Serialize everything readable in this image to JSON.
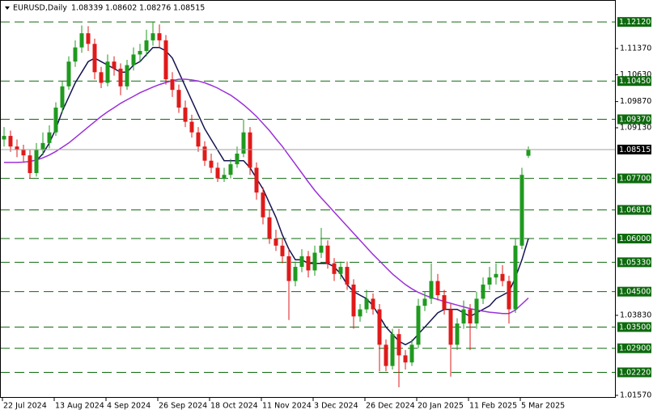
{
  "chart_data": {
    "type": "candlestick",
    "title": "EURUSD,Daily",
    "bull_color": "#1f9a1f",
    "bear_color": "#e01a1a",
    "level_color": "#0e6a0e",
    "candles": [
      [
        1.088,
        1.0915,
        1.086,
        1.089
      ],
      [
        1.089,
        1.0905,
        1.0845,
        1.086
      ],
      [
        1.086,
        1.088,
        1.083,
        1.085
      ],
      [
        1.085,
        1.0865,
        1.0815,
        1.0835
      ],
      [
        1.0835,
        1.085,
        1.077,
        1.0785
      ],
      [
        1.0785,
        1.087,
        1.0775,
        1.085
      ],
      [
        1.085,
        1.09,
        1.0835,
        1.087
      ],
      [
        1.087,
        1.092,
        1.0855,
        1.09
      ],
      [
        1.09,
        1.0985,
        1.089,
        1.097
      ],
      [
        1.097,
        1.1045,
        1.0955,
        1.103
      ],
      [
        1.103,
        1.1115,
        1.102,
        1.11
      ],
      [
        1.11,
        1.116,
        1.1085,
        1.114
      ],
      [
        1.114,
        1.1202,
        1.1125,
        1.118
      ],
      [
        1.118,
        1.12,
        1.113,
        1.115
      ],
      [
        1.115,
        1.1165,
        1.105,
        1.107
      ],
      [
        1.107,
        1.1085,
        1.1025,
        1.104
      ],
      [
        1.104,
        1.112,
        1.103,
        1.11
      ],
      [
        1.11,
        1.1115,
        1.106,
        1.108
      ],
      [
        1.108,
        1.1095,
        1.1005,
        1.103
      ],
      [
        1.103,
        1.1105,
        1.102,
        1.109
      ],
      [
        1.109,
        1.114,
        1.1075,
        1.112
      ],
      [
        1.112,
        1.115,
        1.11,
        1.113
      ],
      [
        1.113,
        1.119,
        1.1115,
        1.116
      ],
      [
        1.116,
        1.1212,
        1.1145,
        1.118
      ],
      [
        1.118,
        1.1205,
        1.114,
        1.116
      ],
      [
        1.116,
        1.1175,
        1.1035,
        1.105
      ],
      [
        1.105,
        1.107,
        1.1,
        1.102
      ],
      [
        1.102,
        1.1035,
        1.0955,
        1.097
      ],
      [
        1.097,
        1.099,
        1.0915,
        1.093
      ],
      [
        1.093,
        1.095,
        1.0885,
        1.09
      ],
      [
        1.09,
        1.0915,
        1.0845,
        1.086
      ],
      [
        1.086,
        1.0875,
        1.0805,
        1.082
      ],
      [
        1.082,
        1.084,
        1.0785,
        1.08
      ],
      [
        1.08,
        1.0815,
        1.076,
        1.077
      ],
      [
        1.077,
        1.08,
        1.076,
        1.078
      ],
      [
        1.078,
        1.0825,
        1.077,
        1.081
      ],
      [
        1.081,
        1.086,
        1.08,
        1.084
      ],
      [
        1.084,
        1.0937,
        1.083,
        1.09
      ],
      [
        1.09,
        1.0915,
        1.078,
        1.08
      ],
      [
        1.08,
        1.0815,
        1.071,
        1.073
      ],
      [
        1.073,
        1.0745,
        1.064,
        1.066
      ],
      [
        1.066,
        1.068,
        1.0585,
        1.06
      ],
      [
        1.06,
        1.0625,
        1.0565,
        1.058
      ],
      [
        1.058,
        1.06,
        1.053,
        1.055
      ],
      [
        1.055,
        1.057,
        1.037,
        1.048
      ],
      [
        1.048,
        1.0535,
        1.0465,
        1.052
      ],
      [
        1.052,
        1.057,
        1.0505,
        1.055
      ],
      [
        1.055,
        1.0565,
        1.049,
        1.051
      ],
      [
        1.051,
        1.058,
        1.0495,
        1.056
      ],
      [
        1.056,
        1.063,
        1.0545,
        1.058
      ],
      [
        1.058,
        1.0595,
        1.0515,
        1.053
      ],
      [
        1.053,
        1.0545,
        1.048,
        1.05
      ],
      [
        1.05,
        1.0535,
        1.0485,
        1.052
      ],
      [
        1.052,
        1.0535,
        1.0455,
        1.047
      ],
      [
        1.047,
        1.0485,
        1.0345,
        1.038
      ],
      [
        1.038,
        1.0415,
        1.0365,
        1.04
      ],
      [
        1.04,
        1.0455,
        1.039,
        1.043
      ],
      [
        1.043,
        1.0445,
        1.0385,
        1.04
      ],
      [
        1.04,
        1.0415,
        1.0225,
        1.03
      ],
      [
        1.03,
        1.0315,
        1.0225,
        1.024
      ],
      [
        1.024,
        1.0345,
        1.023,
        1.033
      ],
      [
        1.033,
        1.0345,
        1.018,
        1.027
      ],
      [
        1.027,
        1.0285,
        1.023,
        1.025
      ],
      [
        1.025,
        1.0315,
        1.024,
        1.03
      ],
      [
        1.03,
        1.043,
        1.029,
        1.041
      ],
      [
        1.041,
        1.045,
        1.0395,
        1.043
      ],
      [
        1.043,
        1.053,
        1.0415,
        1.048
      ],
      [
        1.048,
        1.05,
        1.0425,
        1.044
      ],
      [
        1.044,
        1.0455,
        1.0385,
        1.04
      ],
      [
        1.04,
        1.0415,
        1.021,
        1.03
      ],
      [
        1.03,
        1.0375,
        1.0285,
        1.036
      ],
      [
        1.036,
        1.0425,
        1.0345,
        1.04
      ],
      [
        1.04,
        1.0415,
        1.0285,
        1.036
      ],
      [
        1.036,
        1.045,
        1.0345,
        1.043
      ],
      [
        1.043,
        1.049,
        1.0415,
        1.047
      ],
      [
        1.047,
        1.052,
        1.0455,
        1.049
      ],
      [
        1.049,
        1.053,
        1.047,
        1.05
      ],
      [
        1.05,
        1.0525,
        1.0465,
        1.048
      ],
      [
        1.048,
        1.0495,
        1.036,
        1.04
      ],
      [
        1.04,
        1.06,
        1.039,
        1.058
      ],
      [
        1.058,
        1.08,
        1.057,
        1.078
      ],
      [
        1.08339,
        1.08602,
        1.08276,
        1.08515
      ]
    ],
    "moving_averages": [
      {
        "color": "#14144f",
        "values": [
          null,
          null,
          null,
          null,
          null,
          1.082,
          1.084,
          1.087,
          1.091,
          1.096,
          1.1,
          1.104,
          1.107,
          1.11,
          1.111,
          1.11,
          1.109,
          1.108,
          1.107,
          1.107,
          1.109,
          1.11,
          1.112,
          1.114,
          1.114,
          1.113,
          1.111,
          1.107,
          1.103,
          1.099,
          1.095,
          1.091,
          1.088,
          1.085,
          1.082,
          1.082,
          1.082,
          1.082,
          1.08,
          1.077,
          1.074,
          1.07,
          1.066,
          1.061,
          1.057,
          1.054,
          1.054,
          1.053,
          1.053,
          1.053,
          1.053,
          1.052,
          1.05,
          1.047,
          1.045,
          1.044,
          1.043,
          1.041,
          1.038,
          1.035,
          1.033,
          1.031,
          1.03,
          1.031,
          1.033,
          1.035,
          1.037,
          1.039,
          1.04,
          1.04,
          1.04,
          1.039,
          1.038,
          1.039,
          1.04,
          1.041,
          1.043,
          1.044,
          1.045,
          1.049,
          1.054,
          1.06
        ]
      },
      {
        "color": "#9b30d9",
        "values": [
          1.0815,
          1.0815,
          1.0815,
          1.0816,
          1.0818,
          1.0822,
          1.0828,
          1.0836,
          1.0846,
          1.0858,
          1.087,
          1.0885,
          1.09,
          1.0915,
          1.093,
          1.0945,
          1.0958,
          1.097,
          1.0982,
          1.0992,
          1.1002,
          1.1012,
          1.102,
          1.1028,
          1.1035,
          1.1041,
          1.1046,
          1.105,
          1.105,
          1.1048,
          1.1045,
          1.104,
          1.1033,
          1.1025,
          1.1015,
          1.1005,
          1.0992,
          1.0978,
          1.0962,
          1.0945,
          1.0925,
          1.0905,
          1.0882,
          1.086,
          1.0835,
          1.081,
          1.0785,
          1.076,
          1.0736,
          1.0715,
          1.0695,
          1.0675,
          1.0655,
          1.0635,
          1.0615,
          1.0595,
          1.0575,
          1.0555,
          1.0537,
          1.0518,
          1.05,
          1.0485,
          1.047,
          1.0458,
          1.0448,
          1.044,
          1.0433,
          1.0428,
          1.0422,
          1.0417,
          1.0412,
          1.0407,
          1.0402,
          1.0398,
          1.0395,
          1.0392,
          1.039,
          1.0388,
          1.0388,
          1.0398,
          1.0415,
          1.0432
        ]
      }
    ],
    "ylim": [
      1.015,
      1.1274
    ],
    "yticks": [
      {
        "value": 1.1137,
        "label": "1.11370"
      },
      {
        "value": 1.1063,
        "label": "1.10630"
      },
      {
        "value": 1.0987,
        "label": "1.09870"
      },
      {
        "value": 1.0913,
        "label": "1.09130"
      },
      {
        "value": 1.0383,
        "label": "1.03830"
      },
      {
        "value": 1.0157,
        "label": "1.01570"
      }
    ],
    "levels": [
      {
        "value": 1.1212,
        "label": "1.12120"
      },
      {
        "value": 1.1045,
        "label": "1.10450"
      },
      {
        "value": 1.0937,
        "label": "1.09370"
      },
      {
        "value": 1.077,
        "label": "1.07700"
      },
      {
        "value": 1.0681,
        "label": "1.06810"
      },
      {
        "value": 1.06,
        "label": "1.06000"
      },
      {
        "value": 1.0533,
        "label": "1.05330"
      },
      {
        "value": 1.045,
        "label": "1.04500"
      },
      {
        "value": 1.035,
        "label": "1.03500"
      },
      {
        "value": 1.029,
        "label": "1.02900"
      },
      {
        "value": 1.0222,
        "label": "1.02220"
      }
    ],
    "xlim": [
      -0.625,
      94.375
    ],
    "xticks": [
      {
        "value": 0,
        "label": "22 Jul 2024"
      },
      {
        "value": 8,
        "label": "13 Aug 2024"
      },
      {
        "value": 16,
        "label": "4 Sep 2024"
      },
      {
        "value": 24,
        "label": "26 Sep 2024"
      },
      {
        "value": 32,
        "label": "18 Oct 2024"
      },
      {
        "value": 40,
        "label": "11 Nov 2024"
      },
      {
        "value": 48,
        "label": "3 Dec 2024"
      },
      {
        "value": 56,
        "label": "26 Dec 2024"
      },
      {
        "value": 64,
        "label": "20 Jan 2025"
      },
      {
        "value": 72,
        "label": "11 Feb 2025"
      },
      {
        "value": 80,
        "label": "5 Mar 2025"
      }
    ]
  }
}
